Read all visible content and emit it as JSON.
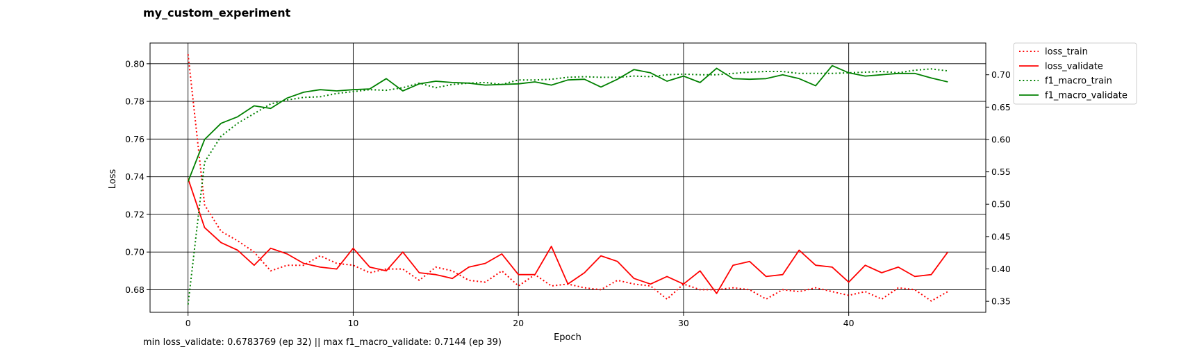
{
  "chart_data": {
    "type": "line",
    "title": "my_custom_experiment",
    "xlabel": "Epoch",
    "ylabel_left": "Loss",
    "ylabel_right": "",
    "xlim": [
      -2.3,
      48.3
    ],
    "ylim_left": [
      0.668,
      0.811
    ],
    "ylim_right": [
      0.333,
      0.749
    ],
    "xticks": [
      0,
      10,
      20,
      30,
      40
    ],
    "yticks_left": [
      0.68,
      0.7,
      0.72,
      0.74,
      0.76,
      0.78,
      0.8
    ],
    "yticks_right": [
      0.35,
      0.4,
      0.45,
      0.5,
      0.55,
      0.6,
      0.65,
      0.7
    ],
    "ytick_labels_right": [
      "0.35",
      "0.40",
      "0.45",
      "0.50",
      "0.55",
      "0.60",
      "0.65",
      "0.70"
    ],
    "grid": true,
    "legend_position": "outside-top-right",
    "footer": "min loss_validate: 0.6783769 (ep 32) || max f1_macro_validate: 0.7144 (ep 39)",
    "series": [
      {
        "name": "loss_train",
        "axis": "left",
        "color": "#ff0000",
        "style": "dotted",
        "x": [
          0,
          1,
          2,
          3,
          4,
          5,
          6,
          7,
          8,
          9,
          10,
          11,
          12,
          13,
          14,
          15,
          16,
          17,
          18,
          19,
          20,
          21,
          22,
          23,
          24,
          25,
          26,
          27,
          28,
          29,
          30,
          31,
          32,
          33,
          34,
          35,
          36,
          37,
          38,
          39,
          40,
          41,
          42,
          43,
          44,
          45,
          46
        ],
        "values": [
          0.805,
          0.725,
          0.711,
          0.706,
          0.7,
          0.69,
          0.693,
          0.693,
          0.698,
          0.694,
          0.693,
          0.689,
          0.691,
          0.691,
          0.685,
          0.692,
          0.69,
          0.685,
          0.684,
          0.69,
          0.682,
          0.688,
          0.682,
          0.683,
          0.681,
          0.68,
          0.685,
          0.683,
          0.682,
          0.675,
          0.683,
          0.68,
          0.68,
          0.681,
          0.68,
          0.675,
          0.68,
          0.679,
          0.681,
          0.679,
          0.677,
          0.679,
          0.675,
          0.681,
          0.68,
          0.674,
          0.679
        ]
      },
      {
        "name": "loss_validate",
        "axis": "left",
        "color": "#ff0000",
        "style": "solid",
        "x": [
          0,
          1,
          2,
          3,
          4,
          5,
          6,
          7,
          8,
          9,
          10,
          11,
          12,
          13,
          14,
          15,
          16,
          17,
          18,
          19,
          20,
          21,
          22,
          23,
          24,
          25,
          26,
          27,
          28,
          29,
          30,
          31,
          32,
          33,
          34,
          35,
          36,
          37,
          38,
          39,
          40,
          41,
          42,
          43,
          44,
          45,
          46
        ],
        "values": [
          0.739,
          0.713,
          0.705,
          0.701,
          0.693,
          0.702,
          0.699,
          0.694,
          0.692,
          0.691,
          0.702,
          0.692,
          0.69,
          0.7,
          0.689,
          0.688,
          0.686,
          0.692,
          0.694,
          0.699,
          0.688,
          0.688,
          0.703,
          0.683,
          0.689,
          0.698,
          0.695,
          0.686,
          0.683,
          0.687,
          0.683,
          0.69,
          0.678,
          0.693,
          0.695,
          0.687,
          0.688,
          0.701,
          0.693,
          0.692,
          0.684,
          0.693,
          0.689,
          0.692,
          0.687,
          0.688,
          0.7
        ]
      },
      {
        "name": "f1_macro_train",
        "axis": "right",
        "color": "#008000",
        "style": "dotted",
        "x": [
          0,
          1,
          2,
          3,
          4,
          5,
          6,
          7,
          8,
          9,
          10,
          11,
          12,
          13,
          14,
          15,
          16,
          17,
          18,
          19,
          20,
          21,
          22,
          23,
          24,
          25,
          26,
          27,
          28,
          29,
          30,
          31,
          32,
          33,
          34,
          35,
          36,
          37,
          38,
          39,
          40,
          41,
          42,
          43,
          44,
          45,
          46
        ],
        "values": [
          0.345,
          0.565,
          0.605,
          0.625,
          0.64,
          0.655,
          0.661,
          0.665,
          0.666,
          0.671,
          0.674,
          0.677,
          0.676,
          0.68,
          0.687,
          0.68,
          0.685,
          0.687,
          0.688,
          0.685,
          0.692,
          0.692,
          0.693,
          0.696,
          0.697,
          0.696,
          0.696,
          0.698,
          0.697,
          0.7,
          0.701,
          0.7,
          0.7,
          0.702,
          0.704,
          0.705,
          0.705,
          0.702,
          0.702,
          0.702,
          0.703,
          0.704,
          0.705,
          0.703,
          0.707,
          0.709,
          0.706
        ]
      },
      {
        "name": "f1_macro_validate",
        "axis": "right",
        "color": "#008000",
        "style": "solid",
        "x": [
          0,
          1,
          2,
          3,
          4,
          5,
          6,
          7,
          8,
          9,
          10,
          11,
          12,
          13,
          14,
          15,
          16,
          17,
          18,
          19,
          20,
          21,
          22,
          23,
          24,
          25,
          26,
          27,
          28,
          29,
          30,
          31,
          32,
          33,
          34,
          35,
          36,
          37,
          38,
          39,
          40,
          41,
          42,
          43,
          44,
          45,
          46
        ],
        "values": [
          0.535,
          0.6,
          0.625,
          0.635,
          0.652,
          0.648,
          0.664,
          0.673,
          0.677,
          0.675,
          0.677,
          0.678,
          0.694,
          0.675,
          0.686,
          0.69,
          0.688,
          0.687,
          0.684,
          0.685,
          0.686,
          0.689,
          0.684,
          0.692,
          0.693,
          0.681,
          0.693,
          0.708,
          0.703,
          0.69,
          0.698,
          0.688,
          0.71,
          0.694,
          0.693,
          0.694,
          0.7,
          0.694,
          0.683,
          0.714,
          0.703,
          0.698,
          0.7,
          0.702,
          0.702,
          0.695,
          0.689
        ]
      }
    ]
  }
}
